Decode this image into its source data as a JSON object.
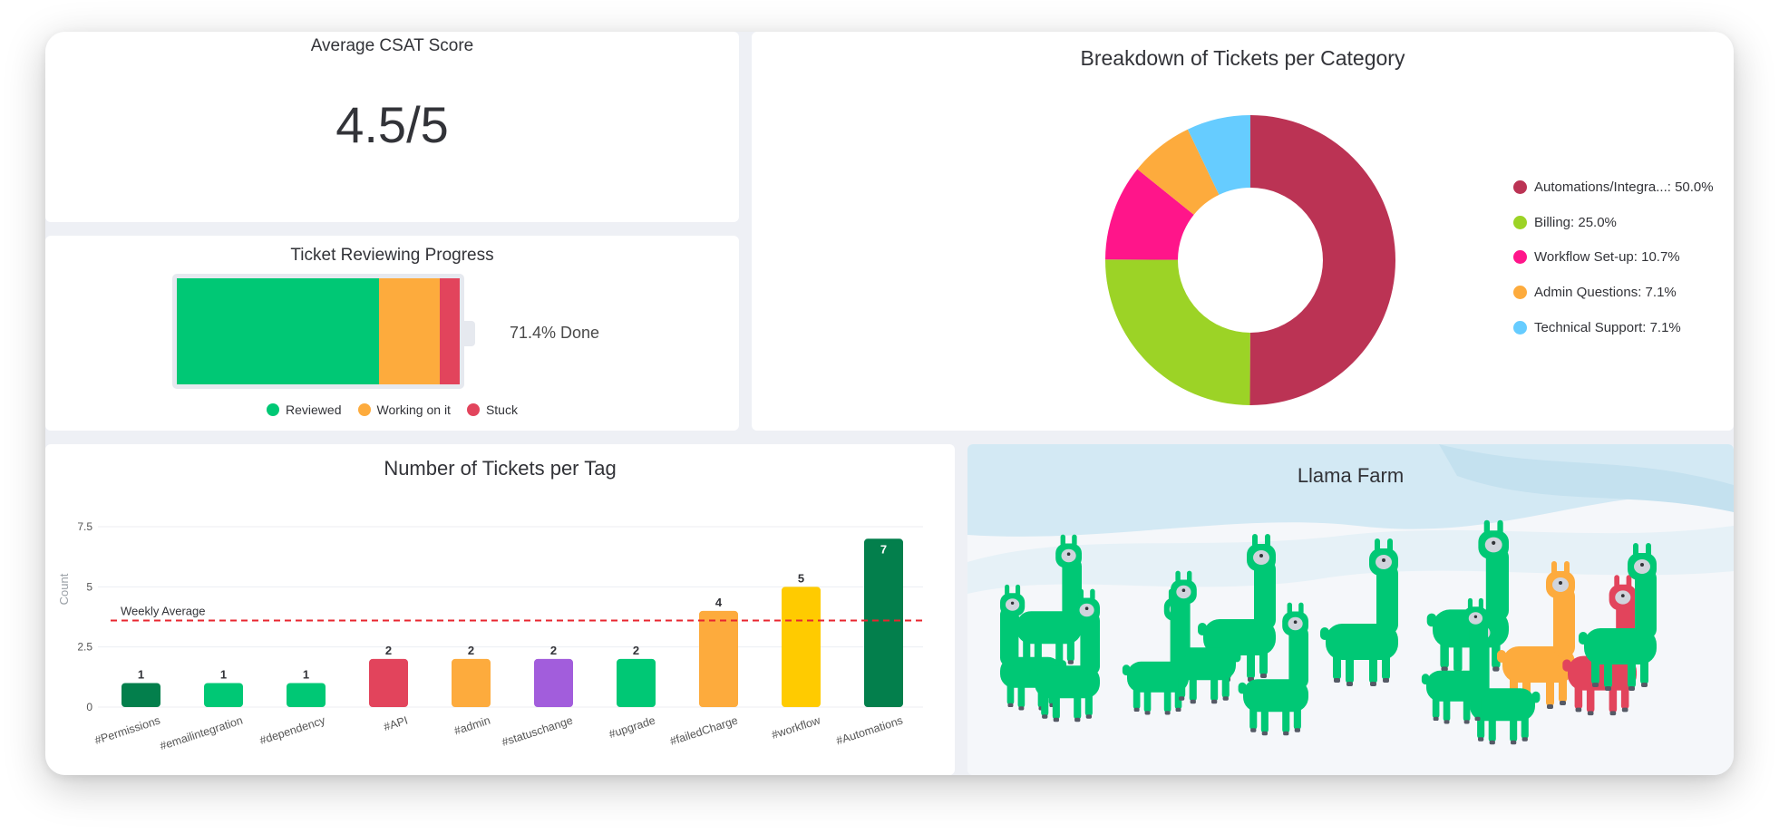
{
  "csat": {
    "title": "Average CSAT Score",
    "value": "4.5/5"
  },
  "progress": {
    "title": "Ticket Reviewing Progress",
    "done_label": "71.4% Done",
    "segments": [
      {
        "name": "Reviewed",
        "fraction": 0.714,
        "color": "#00c875"
      },
      {
        "name": "Working on it",
        "fraction": 0.214,
        "color": "#fdab3d"
      },
      {
        "name": "Stuck",
        "fraction": 0.072,
        "color": "#e2445c"
      }
    ],
    "track_color": "#e6e9ef"
  },
  "donut": {
    "title": "Breakdown of Tickets per Category",
    "chart_data": {
      "type": "pie",
      "title": "Breakdown of Tickets per Category",
      "slices": [
        {
          "label": "Automations/Integra...",
          "value": 50.0,
          "color": "#bb3354",
          "legend": "Automations/Integra...: 50.0%"
        },
        {
          "label": "Billing",
          "value": 25.0,
          "color": "#9cd326",
          "legend": "Billing: 25.0%"
        },
        {
          "label": "Workflow Set-up",
          "value": 10.7,
          "color": "#ff158a",
          "legend": "Workflow Set-up: 10.7%"
        },
        {
          "label": "Admin Questions",
          "value": 7.1,
          "color": "#fdab3d",
          "legend": "Admin Questions: 7.1%"
        },
        {
          "label": "Technical Support",
          "value": 7.1,
          "color": "#66ccff",
          "legend": "Technical Support: 7.1%"
        }
      ],
      "legend_position": "right"
    }
  },
  "tags": {
    "title": "Number of Tickets per Tag",
    "chart_data": {
      "type": "bar",
      "title": "Number of Tickets per Tag",
      "ylabel": "Count",
      "ylim": [
        0,
        7.5
      ],
      "yticks": [
        0,
        2.5,
        5,
        7.5
      ],
      "ytick_labels": [
        "0",
        "2.5",
        "5",
        "7.5"
      ],
      "categories": [
        "#Permissions",
        "#emailintegration",
        "#dependency",
        "#API",
        "#admin",
        "#statuschange",
        "#upgrade",
        "#failedCharge",
        "#workflow",
        "#Automations"
      ],
      "values": [
        1,
        1,
        1,
        2,
        2,
        2,
        2,
        4,
        5,
        7
      ],
      "value_labels": [
        "1",
        "1",
        "1",
        "2",
        "2",
        "2",
        "2",
        "4",
        "5",
        "7"
      ],
      "colors": [
        "#037f4c",
        "#00c875",
        "#00c875",
        "#e2445c",
        "#fdab3d",
        "#a25ddc",
        "#00c875",
        "#fdab3d",
        "#ffcb00",
        "#037f4c"
      ],
      "reference_line": {
        "label": "Weekly Average",
        "value": 3.6,
        "color": "#e8262f"
      },
      "grid": true
    }
  },
  "farm": {
    "title": "Llama Farm",
    "llama_colors": {
      "green": "#00c875",
      "orange": "#fdab3d",
      "red": "#e2445c"
    }
  }
}
